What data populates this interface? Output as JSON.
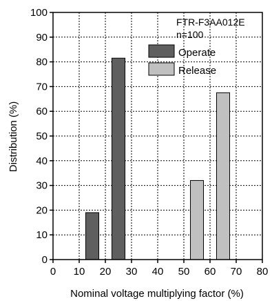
{
  "chart_data": {
    "type": "bar",
    "x_range": [
      0,
      80
    ],
    "x_ticks": [
      0,
      10,
      20,
      30,
      40,
      50,
      60,
      70,
      80
    ],
    "ylim": [
      0,
      100
    ],
    "y_ticks": [
      0,
      10,
      20,
      30,
      40,
      50,
      60,
      70,
      80,
      90,
      100
    ],
    "xlabel": "Nominal voltage multiplying factor (%)",
    "ylabel": "Distribution (%)",
    "grid": true,
    "annotations": [
      "FTR-F3AA012E",
      "n=100"
    ],
    "legend_position": "top-right",
    "bin_width": 5,
    "series": [
      {
        "name": "Operate",
        "color": "#5f5f5f",
        "points": [
          {
            "x": 15,
            "value": 19
          },
          {
            "x": 25,
            "value": 81.5
          }
        ]
      },
      {
        "name": "Release",
        "color": "#c0c0c0",
        "points": [
          {
            "x": 55,
            "value": 32
          },
          {
            "x": 65,
            "value": 67.5
          }
        ]
      }
    ]
  }
}
